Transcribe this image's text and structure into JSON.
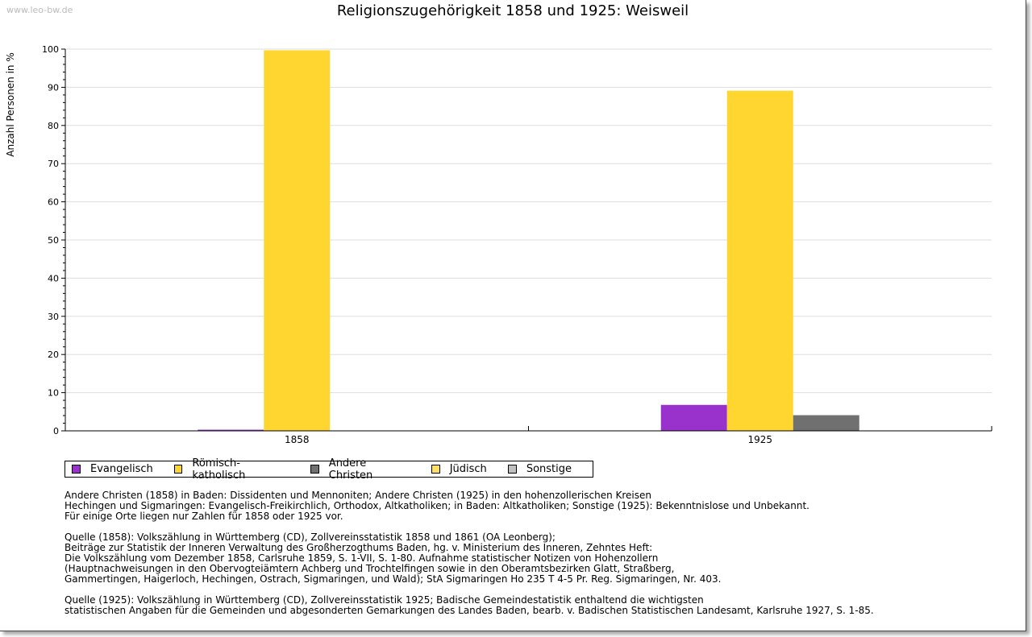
{
  "watermark": "www.leo-bw.de",
  "chart_data": {
    "type": "bar",
    "title": "Religionszugehörigkeit 1858 und 1925: Weisweil",
    "ylabel": "Anzahl Personen in %",
    "xlabel": "",
    "ylim": [
      0,
      100
    ],
    "yticks": [
      0,
      10,
      20,
      30,
      40,
      50,
      60,
      70,
      80,
      90,
      100
    ],
    "categories": [
      "1858",
      "1925"
    ],
    "series": [
      {
        "name": "Evangelisch",
        "color": "#9932CC",
        "values": [
          0.3,
          6.8
        ]
      },
      {
        "name": "Römisch-katholisch",
        "color": "#FFD630",
        "values": [
          99.7,
          89.1
        ]
      },
      {
        "name": "Andere Christen",
        "color": "#707070",
        "values": [
          0,
          4.1
        ]
      },
      {
        "name": "Jüdisch",
        "color": "#FFDF66",
        "values": [
          0,
          0
        ]
      },
      {
        "name": "Sonstige",
        "color": "#C0C0C0",
        "values": [
          0,
          0
        ]
      }
    ],
    "grid": true,
    "legend": "bottom-left"
  },
  "notes": [
    [
      "Andere Christen (1858) in Baden: Dissidenten und Mennoniten; Andere Christen (1925) in den hohenzollerischen Kreisen",
      "Hechingen und Sigmaringen: Evangelisch-Freikirchlich, Orthodox, Altkatholiken; in Baden: Altkatholiken; Sonstige (1925): Bekenntnislose und Unbekannt.",
      "Für einige Orte liegen nur Zahlen für 1858 oder 1925 vor."
    ],
    [
      "Quelle (1858): Volkszählung in Württemberg (CD), Zollvereinsstatistik 1858 und 1861 (OA Leonberg);",
      "Beiträge zur Statistik der Inneren Verwaltung des Großherzogthums Baden, hg. v. Ministerium des Inneren, Zehntes Heft:",
      "Die Volkszählung vom Dezember 1858, Carlsruhe 1859, S. 1-VII, S. 1-80. Aufnahme statistischer Notizen von Hohenzollern",
      "(Hauptnachweisungen in den Obervogteiämtern Achberg und Trochtelfingen sowie in den Oberamtsbezirken Glatt, Straßberg,",
      "Gammertingen, Haigerloch, Hechingen, Ostrach, Sigmaringen, und Wald); StA Sigmaringen Ho 235 T 4-5 Pr. Reg. Sigmaringen, Nr. 403."
    ],
    [
      "Quelle (1925): Volkszählung in Württemberg (CD), Zollvereinsstatistik 1925; Badische Gemeindestatistik enthaltend die wichtigsten",
      "statistischen Angaben für die Gemeinden und abgesonderten Gemarkungen des Landes Baden, bearb. v. Badischen Statistischen Landesamt, Karlsruhe 1927, S. 1-85."
    ]
  ]
}
